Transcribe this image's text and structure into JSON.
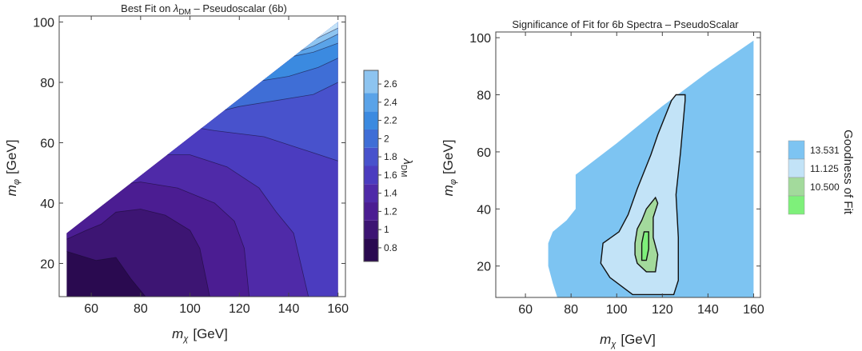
{
  "chart_data": [
    {
      "type": "heatmap",
      "subtype": "contour",
      "title_pre": "Best Fit on ",
      "title_symbol": "λ",
      "title_sub": "DM",
      "title_post": " – Pseudoscalar (6b)",
      "xlabel_symbol": "m",
      "xlabel_sub": "χ",
      "xlabel_unit": "[GeV]",
      "ylabel_symbol": "m",
      "ylabel_sub": "φ",
      "ylabel_unit": "[GeV]",
      "xlim": [
        47,
        163
      ],
      "ylim": [
        9,
        102
      ],
      "x_ticks": [
        60,
        80,
        100,
        120,
        140,
        160
      ],
      "y_ticks": [
        20,
        40,
        60,
        80,
        100
      ],
      "colorbar": {
        "label_symbol": "λ",
        "label_sub": "DM",
        "ticks": [
          0.8,
          1,
          1.2,
          1.4,
          1.6,
          1.8,
          2,
          2.2,
          2.4,
          2.6
        ],
        "range": [
          0.65,
          2.75
        ],
        "colors": [
          "#2a0a50",
          "#3d1573",
          "#4b1d92",
          "#4f2aa8",
          "#4b3cbf",
          "#4852cc",
          "#3f6ed6",
          "#3b8ae0",
          "#5aa3e8",
          "#8dc4f0",
          "#c3e2f8"
        ]
      },
      "contour_levels": [
        {
          "level": 0.8,
          "boundary": [
            [
              50,
              24
            ],
            [
              62,
              21
            ],
            [
              70,
              22
            ],
            [
              76,
              15
            ],
            [
              82,
              9
            ]
          ]
        },
        {
          "level": 1.0,
          "boundary": [
            [
              50,
              28
            ],
            [
              58,
              31
            ],
            [
              64,
              33
            ],
            [
              70,
              37
            ],
            [
              80,
              38
            ],
            [
              90,
              36
            ],
            [
              100,
              31
            ],
            [
              104,
              25
            ],
            [
              108,
              9
            ]
          ]
        },
        {
          "level": 1.2,
          "boundary": [
            [
              58,
              37
            ],
            [
              70,
              46
            ],
            [
              80,
              47
            ],
            [
              95,
              45
            ],
            [
              110,
              40
            ],
            [
              118,
              34
            ],
            [
              122,
              25
            ],
            [
              124,
              9
            ]
          ]
        },
        {
          "level": 1.4,
          "boundary": [
            [
              72,
              52
            ],
            [
              85,
              56
            ],
            [
              100,
              56
            ],
            [
              115,
              52
            ],
            [
              128,
              45
            ],
            [
              135,
              37
            ],
            [
              142,
              30
            ],
            [
              148,
              9
            ]
          ]
        },
        {
          "level": 1.6,
          "boundary": [
            [
              95,
              66
            ],
            [
              110,
              64
            ],
            [
              130,
              62
            ],
            [
              145,
              58
            ],
            [
              160,
              54
            ]
          ]
        },
        {
          "level": 1.8,
          "boundary": [
            [
              105,
              69
            ],
            [
              120,
              72
            ],
            [
              135,
              74
            ],
            [
              150,
              76
            ],
            [
              160,
              80
            ]
          ]
        },
        {
          "level": 2.0,
          "boundary": [
            [
              112,
              76
            ],
            [
              125,
              80
            ],
            [
              140,
              82
            ],
            [
              152,
              85
            ],
            [
              160,
              88
            ]
          ]
        },
        {
          "level": 2.2,
          "boundary": [
            [
              125,
              84
            ],
            [
              138,
              88
            ],
            [
              150,
              90
            ],
            [
              160,
              93
            ]
          ]
        },
        {
          "level": 2.4,
          "boundary": [
            [
              140,
              89
            ],
            [
              150,
              92
            ],
            [
              160,
              96
            ]
          ]
        },
        {
          "level": 2.6,
          "boundary": [
            [
              150,
              94
            ],
            [
              160,
              98
            ]
          ]
        }
      ],
      "domain": [
        [
          50,
          30
        ],
        [
          160,
          100
        ],
        [
          160,
          9
        ],
        [
          50,
          9
        ]
      ]
    },
    {
      "type": "heatmap",
      "subtype": "contour",
      "title": "Significance of Fit for 6b Spectra – PseudoScalar",
      "xlabel_symbol": "m",
      "xlabel_sub": "χ",
      "xlabel_unit": "[GeV]",
      "ylabel_symbol": "m",
      "ylabel_sub": "φ",
      "ylabel_unit": "[GeV]",
      "xlim": [
        47,
        163
      ],
      "ylim": [
        9,
        102
      ],
      "x_ticks": [
        60,
        80,
        100,
        120,
        140,
        160
      ],
      "y_ticks": [
        20,
        40,
        60,
        80,
        100
      ],
      "legend_label": "Goodness of Fit",
      "legend": [
        {
          "label": "13.531",
          "color": "#7dc4f2"
        },
        {
          "label": "11.125",
          "color": "#c2e3f7"
        },
        {
          "label": "10.500",
          "color": "#a3da9c"
        },
        {
          "label": "",
          "color": "#7ef07a"
        }
      ],
      "regions": [
        {
          "name": "outer",
          "color": "#7dc4f2",
          "boundary": [
            [
              74,
              9
            ],
            [
              72,
              14
            ],
            [
              70,
              20
            ],
            [
              70,
              28
            ],
            [
              72,
              32
            ],
            [
              78,
              36
            ],
            [
              82,
              40
            ],
            [
              82,
              52
            ],
            [
              100,
              63
            ],
            [
              120,
              76
            ],
            [
              140,
              88
            ],
            [
              160,
              99
            ],
            [
              160,
              9
            ]
          ]
        },
        {
          "name": "middle",
          "color": "#c2e3f7",
          "boundary": [
            [
              107,
              10
            ],
            [
              97,
              16
            ],
            [
              93,
              21
            ],
            [
              94,
              28
            ],
            [
              101,
              32
            ],
            [
              105,
              38
            ],
            [
              109,
              47
            ],
            [
              115,
              59
            ],
            [
              118,
              66
            ],
            [
              124,
              78
            ],
            [
              126,
              80
            ],
            [
              130,
              80
            ],
            [
              130,
              78
            ],
            [
              128,
              60
            ],
            [
              126,
              45
            ],
            [
              127,
              30
            ],
            [
              127,
              15
            ],
            [
              125,
              10
            ]
          ]
        },
        {
          "name": "inner",
          "color": "#a3da9c",
          "boundary": [
            [
              109,
              21
            ],
            [
              108,
              24
            ],
            [
              108,
              28
            ],
            [
              109,
              33
            ],
            [
              111,
              36
            ],
            [
              113,
              40
            ],
            [
              117,
              44
            ],
            [
              118,
              42
            ],
            [
              116,
              37
            ],
            [
              116,
              30
            ],
            [
              118,
              24
            ],
            [
              117,
              18
            ],
            [
              113,
              18
            ]
          ]
        },
        {
          "name": "core",
          "color": "#7ef07a",
          "boundary": [
            [
              111,
              22
            ],
            [
              111,
              28
            ],
            [
              112,
              32
            ],
            [
              114,
              32
            ],
            [
              114,
              26
            ],
            [
              113,
              22
            ]
          ]
        }
      ]
    }
  ]
}
